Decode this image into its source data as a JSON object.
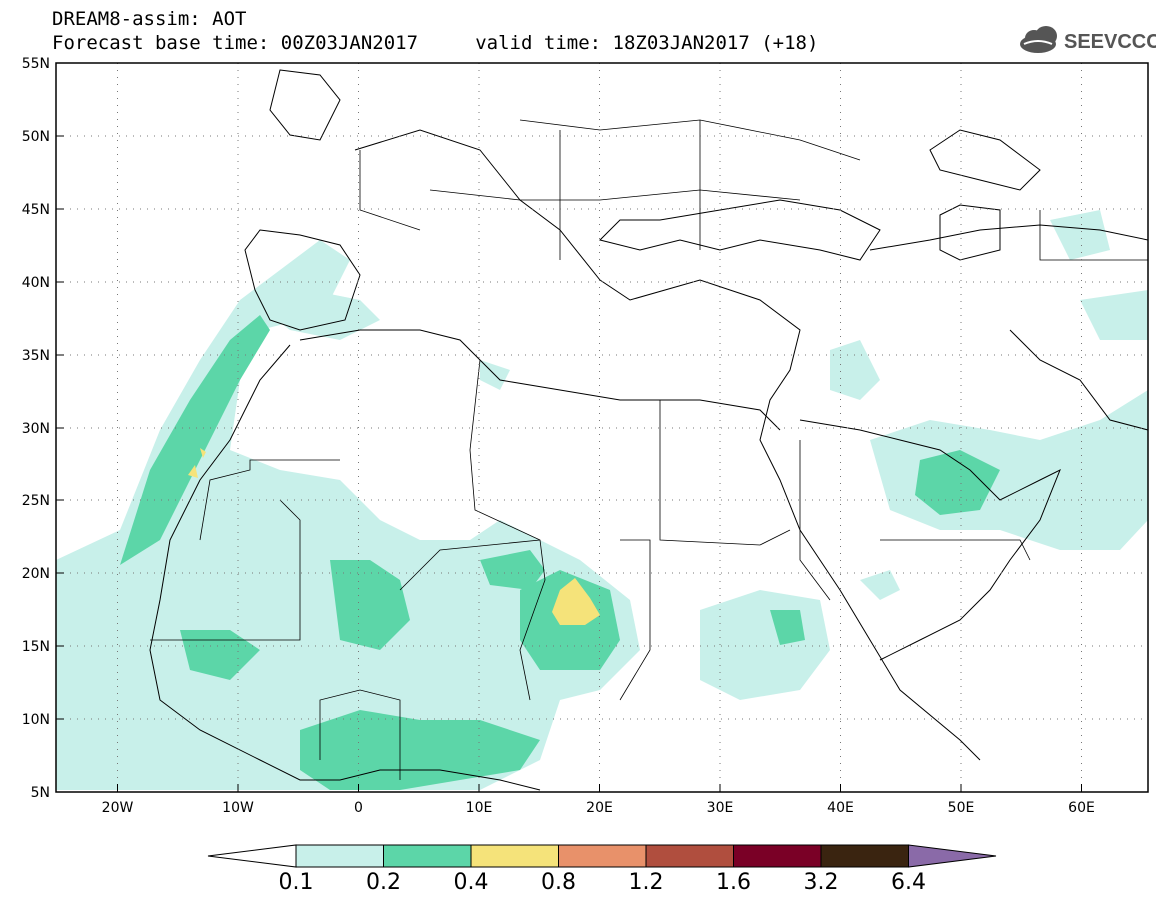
{
  "title_line1": "DREAM8-assim: AOT",
  "title_line2": "Forecast base time: 00Z03JAN2017     valid time: 18Z03JAN2017 (+18)",
  "logo_text": "SEEVCCC",
  "lat_labels": [
    "55N",
    "50N",
    "45N",
    "40N",
    "35N",
    "30N",
    "25N",
    "20N",
    "15N",
    "10N",
    "5N"
  ],
  "lon_labels": [
    "20W",
    "10W",
    "0",
    "10E",
    "20E",
    "30E",
    "40E",
    "50E",
    "60E"
  ],
  "colorbar": {
    "values": [
      "0.1",
      "0.2",
      "0.4",
      "0.8",
      "1.2",
      "1.6",
      "3.2",
      "6.4"
    ],
    "colors": [
      "#ffffff",
      "#c8f0ea",
      "#5cd6a8",
      "#f5e37a",
      "#e8916a",
      "#b04e3e",
      "#7a0026",
      "#3a2410",
      "#8a6aa8"
    ]
  },
  "colors": {
    "land_border": "#000000",
    "grid": "#777777"
  }
}
